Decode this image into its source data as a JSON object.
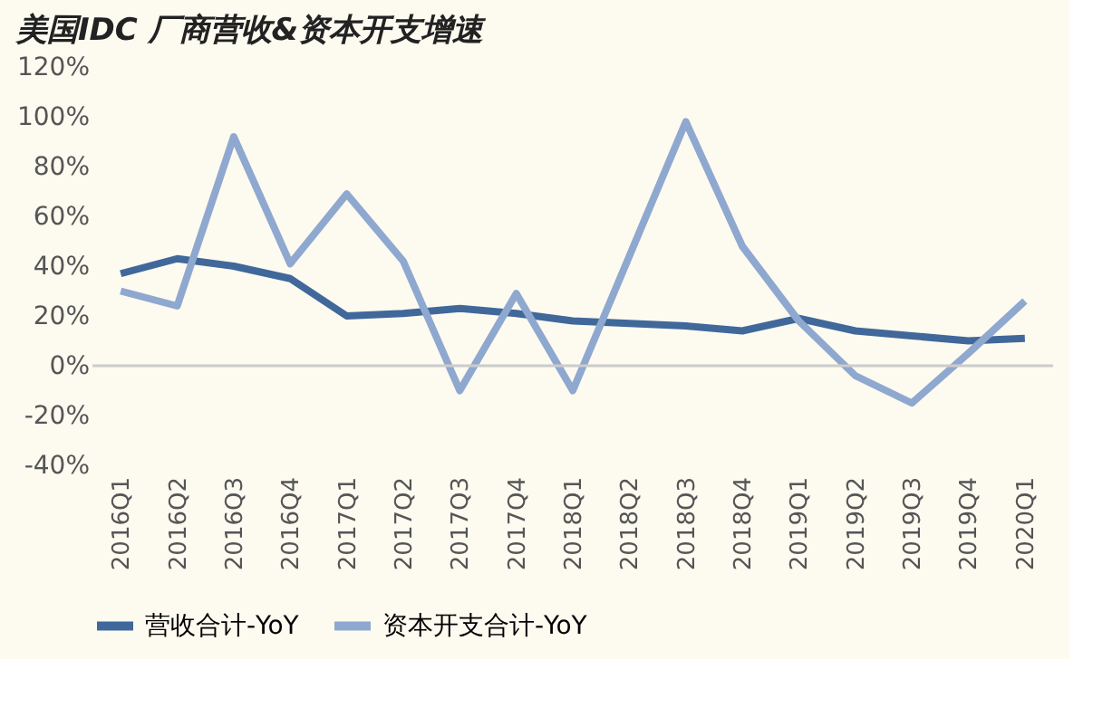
{
  "chart_data": {
    "type": "line",
    "title": "美国IDC 厂商营收&资本开支增速",
    "categories": [
      "2016Q1",
      "2016Q2",
      "2016Q3",
      "2016Q4",
      "2017Q1",
      "2017Q2",
      "2017Q3",
      "2017Q4",
      "2018Q1",
      "2018Q2",
      "2018Q3",
      "2018Q4",
      "2019Q1",
      "2019Q2",
      "2019Q3",
      "2019Q4",
      "2020Q1"
    ],
    "series": [
      {
        "name": "营收合计-YoY",
        "color": "#40689a",
        "values": [
          37,
          43,
          40,
          35,
          20,
          21,
          23,
          21,
          18,
          17,
          16,
          14,
          19,
          14,
          12,
          10,
          11
        ]
      },
      {
        "name": "资本开支合计-YoY",
        "color": "#8fa8cf",
        "values": [
          30,
          24,
          92,
          41,
          69,
          42,
          -10,
          29,
          -10,
          44,
          98,
          48,
          18,
          -4,
          -15,
          5,
          26
        ]
      }
    ],
    "ylim": [
      -40,
      120
    ],
    "yticks": [
      {
        "value": -40,
        "label": "-40%"
      },
      {
        "value": -20,
        "label": "-20%"
      },
      {
        "value": 0,
        "label": "0%"
      },
      {
        "value": 20,
        "label": "20%"
      },
      {
        "value": 40,
        "label": "40%"
      },
      {
        "value": 60,
        "label": "60%"
      },
      {
        "value": 80,
        "label": "80%"
      },
      {
        "value": 100,
        "label": "100%"
      },
      {
        "value": 120,
        "label": "120%"
      }
    ],
    "ref_lines": [
      {
        "axis": "y",
        "value": 0,
        "color": "#cccccc"
      }
    ],
    "grid": false,
    "legend": "bottom",
    "line_style": "solid",
    "marker": "none"
  }
}
